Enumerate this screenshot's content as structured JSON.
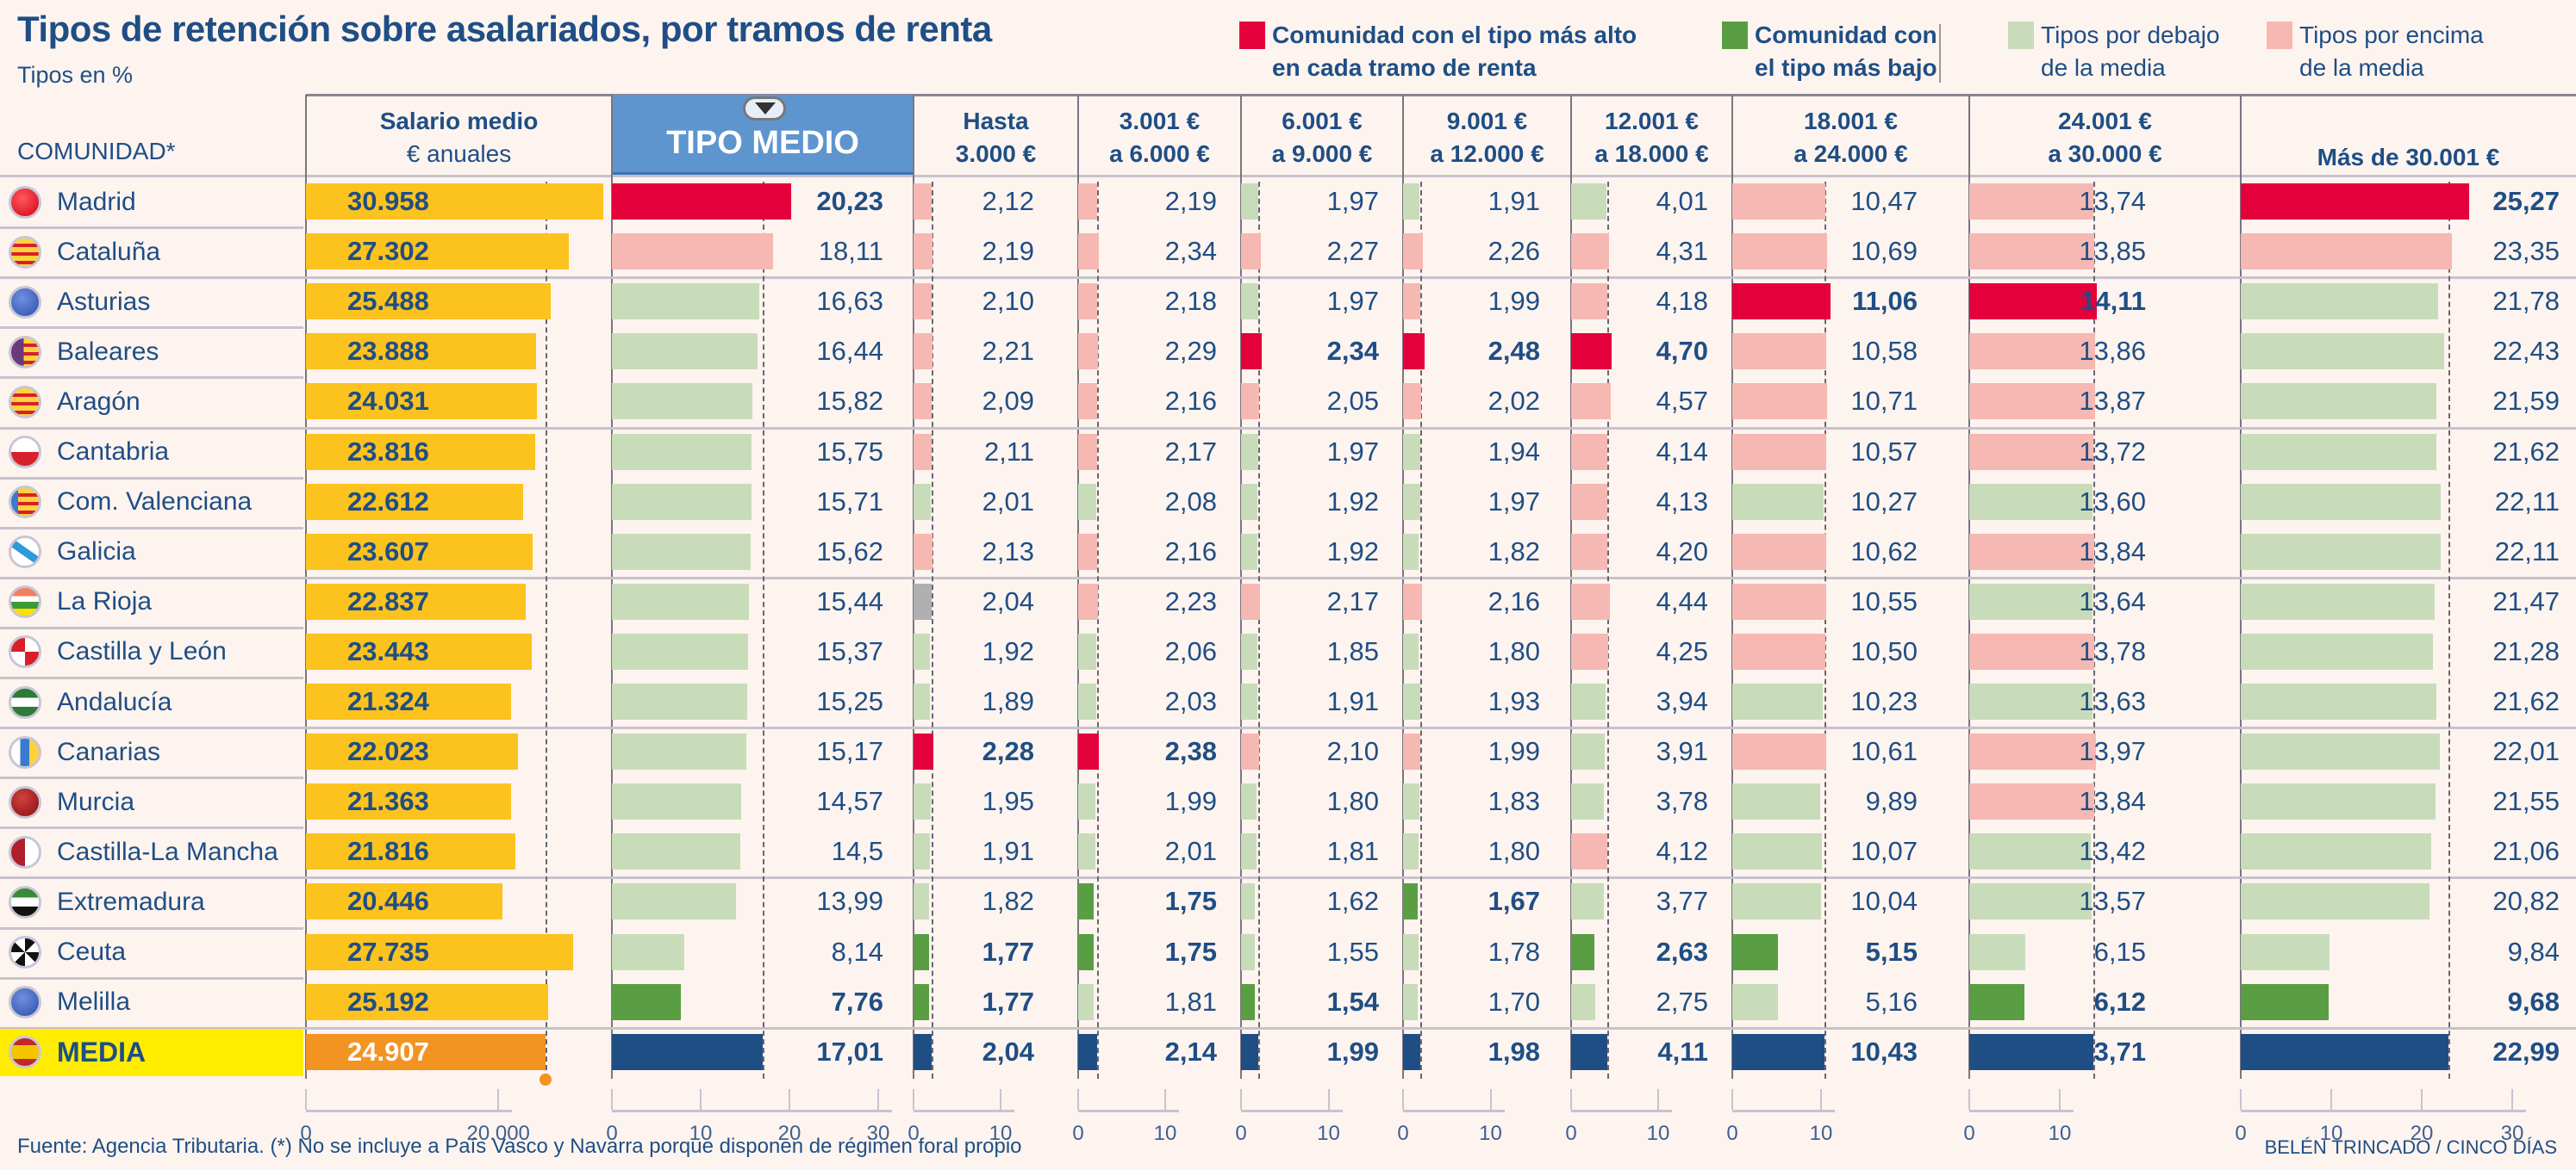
{
  "title": "Tipos de retención sobre asalariados, por tramos de renta",
  "subtitle": "Tipos en %",
  "legend": [
    {
      "key": "highest",
      "label": "Comunidad con el tipo más alto\nen cada tramo de renta",
      "color": "#e4003b",
      "bold": true
    },
    {
      "key": "lowest",
      "label": "Comunidad con\nel tipo más bajo",
      "color": "#5a9e44",
      "bold": true
    },
    {
      "key": "below",
      "label": "Tipos por debajo\nde la media",
      "color": "#c8dcba",
      "bold": false
    },
    {
      "key": "above",
      "label": "Tipos por encima\nde la media",
      "color": "#f6b8b2",
      "bold": false
    }
  ],
  "colors": {
    "highest": "#e4003b",
    "lowest": "#5a9e44",
    "below": "#c8dcba",
    "above": "#f6b8b2",
    "equal": "#b0b0b0",
    "media": "#1f4e85",
    "salary": "#fcc21e",
    "salary_media": "#f39322",
    "media_row_bg": "#ffec00",
    "tipo_header_bg": "#5e95cf"
  },
  "header": {
    "comunidad": "COMUNIDAD*",
    "salario_line1": "Salario medio",
    "salario_line2": "€ anuales",
    "tipo_medio": "TIPO MEDIO"
  },
  "footer": {
    "source": "Fuente: Agencia Tributaria. (*) No se incluye a País Vasco y Navarra porque disponen de régimen foral propio",
    "credit": "BELÉN TRINCADO / CINCO DÍAS"
  },
  "chart_data": {
    "type": "table",
    "title": "Tipos de retención sobre asalariados, por tramos de renta",
    "subtitle": "Tipos en %",
    "columns": [
      {
        "key": "salario",
        "label": "Salario medio\n€ anuales",
        "ticks": [
          0,
          20000
        ],
        "tick_labels": [
          "0",
          "20.000"
        ],
        "xlim": [
          0,
          32000
        ]
      },
      {
        "key": "tipo_medio",
        "label": "TIPO MEDIO",
        "ticks": [
          0,
          10,
          20,
          30
        ],
        "tick_labels": [
          "0",
          "10",
          "20",
          "30"
        ],
        "xlim": [
          0,
          35
        ]
      },
      {
        "key": "t1",
        "label": "Hasta\n3.000 €",
        "ticks": [
          0,
          10
        ],
        "tick_labels": [
          "0",
          "10"
        ],
        "xlim": [
          0,
          19
        ]
      },
      {
        "key": "t2",
        "label": "3.001 €\na 6.000 €",
        "ticks": [
          0,
          10
        ],
        "tick_labels": [
          "0",
          "10"
        ],
        "xlim": [
          0,
          19
        ]
      },
      {
        "key": "t3",
        "label": "6.001 €\na 9.000 €",
        "ticks": [
          0,
          10
        ],
        "tick_labels": [
          "0",
          "10"
        ],
        "xlim": [
          0,
          19
        ]
      },
      {
        "key": "t4",
        "label": "9.001 €\na 12.000 €",
        "ticks": [
          0,
          10
        ],
        "tick_labels": [
          "0",
          "10"
        ],
        "xlim": [
          0,
          19
        ]
      },
      {
        "key": "t5",
        "label": "12.001 €\na 18.000 €",
        "ticks": [
          0,
          10
        ],
        "tick_labels": [
          "0",
          "10"
        ],
        "xlim": [
          0,
          19
        ]
      },
      {
        "key": "t6",
        "label": "18.001 €\na 24.000 €",
        "ticks": [
          0,
          10
        ],
        "tick_labels": [
          "0",
          "10"
        ],
        "xlim": [
          0,
          27
        ]
      },
      {
        "key": "t7",
        "label": "24.001 €\na 30.000 €",
        "ticks": [
          0,
          10
        ],
        "tick_labels": [
          "0",
          "10"
        ],
        "xlim": [
          0,
          30
        ]
      },
      {
        "key": "t8",
        "label": "Más de 30.001 €",
        "ticks": [
          0,
          10,
          20,
          30
        ],
        "tick_labels": [
          "0",
          "10",
          "20",
          "30"
        ],
        "xlim": [
          0,
          35
        ]
      }
    ],
    "rows": [
      {
        "name": "Madrid",
        "flag": "madrid-flag-icon",
        "salario": 30958,
        "salario_label": "30.958",
        "values": [
          20.23,
          2.12,
          2.19,
          1.97,
          1.91,
          4.01,
          10.47,
          13.74,
          25.27
        ],
        "labels": [
          "20,23",
          "2,12",
          "2,19",
          "1,97",
          "1,91",
          "4,01",
          "10,47",
          "13,74",
          "25,27"
        ],
        "status": [
          "highest",
          "above",
          "above",
          "below",
          "below",
          "below",
          "above",
          "above",
          "highest"
        ]
      },
      {
        "name": "Cataluña",
        "flag": "cataluna-flag-icon",
        "salario": 27302,
        "salario_label": "27.302",
        "values": [
          18.11,
          2.19,
          2.34,
          2.27,
          2.26,
          4.31,
          10.69,
          13.85,
          23.35
        ],
        "labels": [
          "18,11",
          "2,19",
          "2,34",
          "2,27",
          "2,26",
          "4,31",
          "10,69",
          "13,85",
          "23,35"
        ],
        "status": [
          "above",
          "above",
          "above",
          "above",
          "above",
          "above",
          "above",
          "above",
          "above"
        ]
      },
      {
        "name": "Asturias",
        "flag": "asturias-flag-icon",
        "salario": 25488,
        "salario_label": "25.488",
        "values": [
          16.63,
          2.1,
          2.18,
          1.97,
          1.99,
          4.18,
          11.06,
          14.11,
          21.78
        ],
        "labels": [
          "16,63",
          "2,10",
          "2,18",
          "1,97",
          "1,99",
          "4,18",
          "11,06",
          "14,11",
          "21,78"
        ],
        "status": [
          "below",
          "above",
          "above",
          "below",
          "above",
          "above",
          "highest",
          "highest",
          "below"
        ]
      },
      {
        "name": "Baleares",
        "flag": "baleares-flag-icon",
        "salario": 23888,
        "salario_label": "23.888",
        "values": [
          16.44,
          2.21,
          2.29,
          2.34,
          2.48,
          4.7,
          10.58,
          13.86,
          22.43
        ],
        "labels": [
          "16,44",
          "2,21",
          "2,29",
          "2,34",
          "2,48",
          "4,70",
          "10,58",
          "13,86",
          "22,43"
        ],
        "status": [
          "below",
          "above",
          "above",
          "highest",
          "highest",
          "highest",
          "above",
          "above",
          "below"
        ]
      },
      {
        "name": "Aragón",
        "flag": "aragon-flag-icon",
        "salario": 24031,
        "salario_label": "24.031",
        "values": [
          15.82,
          2.09,
          2.16,
          2.05,
          2.02,
          4.57,
          10.71,
          13.87,
          21.59
        ],
        "labels": [
          "15,82",
          "2,09",
          "2,16",
          "2,05",
          "2,02",
          "4,57",
          "10,71",
          "13,87",
          "21,59"
        ],
        "status": [
          "below",
          "above",
          "above",
          "above",
          "above",
          "above",
          "above",
          "above",
          "below"
        ]
      },
      {
        "name": "Cantabria",
        "flag": "cantabria-flag-icon",
        "salario": 23816,
        "salario_label": "23.816",
        "values": [
          15.75,
          2.11,
          2.17,
          1.97,
          1.94,
          4.14,
          10.57,
          13.72,
          21.62
        ],
        "labels": [
          "15,75",
          "2,11",
          "2,17",
          "1,97",
          "1,94",
          "4,14",
          "10,57",
          "13,72",
          "21,62"
        ],
        "status": [
          "below",
          "above",
          "above",
          "below",
          "below",
          "above",
          "above",
          "above",
          "below"
        ]
      },
      {
        "name": "Com. Valenciana",
        "flag": "valenciana-flag-icon",
        "salario": 22612,
        "salario_label": "22.612",
        "values": [
          15.71,
          2.01,
          2.08,
          1.92,
          1.97,
          4.13,
          10.27,
          13.6,
          22.11
        ],
        "labels": [
          "15,71",
          "2,01",
          "2,08",
          "1,92",
          "1,97",
          "4,13",
          "10,27",
          "13,60",
          "22,11"
        ],
        "status": [
          "below",
          "below",
          "below",
          "below",
          "below",
          "above",
          "below",
          "below",
          "below"
        ]
      },
      {
        "name": "Galicia",
        "flag": "galicia-flag-icon",
        "salario": 23607,
        "salario_label": "23.607",
        "values": [
          15.62,
          2.13,
          2.16,
          1.92,
          1.82,
          4.2,
          10.62,
          13.84,
          22.11
        ],
        "labels": [
          "15,62",
          "2,13",
          "2,16",
          "1,92",
          "1,82",
          "4,20",
          "10,62",
          "13,84",
          "22,11"
        ],
        "status": [
          "below",
          "above",
          "above",
          "below",
          "below",
          "above",
          "above",
          "above",
          "below"
        ]
      },
      {
        "name": "La Rioja",
        "flag": "rioja-flag-icon",
        "salario": 22837,
        "salario_label": "22.837",
        "values": [
          15.44,
          2.04,
          2.23,
          2.17,
          2.16,
          4.44,
          10.55,
          13.64,
          21.47
        ],
        "labels": [
          "15,44",
          "2,04",
          "2,23",
          "2,17",
          "2,16",
          "4,44",
          "10,55",
          "13,64",
          "21,47"
        ],
        "status": [
          "below",
          "equal",
          "above",
          "above",
          "above",
          "above",
          "above",
          "below",
          "below"
        ]
      },
      {
        "name": "Castilla y León",
        "flag": "castilla-leon-flag-icon",
        "salario": 23443,
        "salario_label": "23.443",
        "values": [
          15.37,
          1.92,
          2.06,
          1.85,
          1.8,
          4.25,
          10.5,
          13.78,
          21.28
        ],
        "labels": [
          "15,37",
          "1,92",
          "2,06",
          "1,85",
          "1,80",
          "4,25",
          "10,50",
          "13,78",
          "21,28"
        ],
        "status": [
          "below",
          "below",
          "below",
          "below",
          "below",
          "above",
          "above",
          "above",
          "below"
        ]
      },
      {
        "name": "Andalucía",
        "flag": "andalucia-flag-icon",
        "salario": 21324,
        "salario_label": "21.324",
        "values": [
          15.25,
          1.89,
          2.03,
          1.91,
          1.93,
          3.94,
          10.23,
          13.63,
          21.62
        ],
        "labels": [
          "15,25",
          "1,89",
          "2,03",
          "1,91",
          "1,93",
          "3,94",
          "10,23",
          "13,63",
          "21,62"
        ],
        "status": [
          "below",
          "below",
          "below",
          "below",
          "below",
          "below",
          "below",
          "below",
          "below"
        ]
      },
      {
        "name": "Canarias",
        "flag": "canarias-flag-icon",
        "salario": 22023,
        "salario_label": "22.023",
        "values": [
          15.17,
          2.28,
          2.38,
          2.1,
          1.99,
          3.91,
          10.61,
          13.97,
          22.01
        ],
        "labels": [
          "15,17",
          "2,28",
          "2,38",
          "2,10",
          "1,99",
          "3,91",
          "10,61",
          "13,97",
          "22,01"
        ],
        "status": [
          "below",
          "highest",
          "highest",
          "above",
          "above",
          "below",
          "above",
          "above",
          "below"
        ]
      },
      {
        "name": "Murcia",
        "flag": "murcia-flag-icon",
        "salario": 21363,
        "salario_label": "21.363",
        "values": [
          14.57,
          1.95,
          1.99,
          1.8,
          1.83,
          3.78,
          9.89,
          13.84,
          21.55
        ],
        "labels": [
          "14,57",
          "1,95",
          "1,99",
          "1,80",
          "1,83",
          "3,78",
          "9,89",
          "13,84",
          "21,55"
        ],
        "status": [
          "below",
          "below",
          "below",
          "below",
          "below",
          "below",
          "below",
          "above",
          "below"
        ]
      },
      {
        "name": "Castilla-La Mancha",
        "flag": "castilla-mancha-flag-icon",
        "salario": 21816,
        "salario_label": "21.816",
        "values": [
          14.5,
          1.91,
          2.01,
          1.81,
          1.8,
          4.12,
          10.07,
          13.42,
          21.06
        ],
        "labels": [
          "14,5",
          "1,91",
          "2,01",
          "1,81",
          "1,80",
          "4,12",
          "10,07",
          "13,42",
          "21,06"
        ],
        "status": [
          "below",
          "below",
          "below",
          "below",
          "below",
          "above",
          "below",
          "below",
          "below"
        ]
      },
      {
        "name": "Extremadura",
        "flag": "extremadura-flag-icon",
        "salario": 20446,
        "salario_label": "20.446",
        "values": [
          13.99,
          1.82,
          1.75,
          1.62,
          1.67,
          3.77,
          10.04,
          13.57,
          20.82
        ],
        "labels": [
          "13,99",
          "1,82",
          "1,75",
          "1,62",
          "1,67",
          "3,77",
          "10,04",
          "13,57",
          "20,82"
        ],
        "status": [
          "below",
          "below",
          "lowest",
          "below",
          "lowest",
          "below",
          "below",
          "below",
          "below"
        ]
      },
      {
        "name": "Ceuta",
        "flag": "ceuta-flag-icon",
        "salario": 27735,
        "salario_label": "27.735",
        "values": [
          8.14,
          1.77,
          1.75,
          1.55,
          1.78,
          2.63,
          5.15,
          6.15,
          9.84
        ],
        "labels": [
          "8,14",
          "1,77",
          "1,75",
          "1,55",
          "1,78",
          "2,63",
          "5,15",
          "6,15",
          "9,84"
        ],
        "status": [
          "below",
          "lowest",
          "lowest",
          "below",
          "below",
          "lowest",
          "lowest",
          "below",
          "below"
        ]
      },
      {
        "name": "Melilla",
        "flag": "melilla-flag-icon",
        "salario": 25192,
        "salario_label": "25.192",
        "values": [
          7.76,
          1.77,
          1.81,
          1.54,
          1.7,
          2.75,
          5.16,
          6.12,
          9.68
        ],
        "labels": [
          "7,76",
          "1,77",
          "1,81",
          "1,54",
          "1,70",
          "2,75",
          "5,16",
          "6,12",
          "9,68"
        ],
        "status": [
          "lowest",
          "lowest",
          "below",
          "lowest",
          "below",
          "below",
          "below",
          "lowest",
          "lowest"
        ]
      },
      {
        "name": "MEDIA",
        "flag": "espana-flag-icon",
        "salario": 24907,
        "salario_label": "24.907",
        "is_media": true,
        "values": [
          17.01,
          2.04,
          2.14,
          1.99,
          1.98,
          4.11,
          10.43,
          13.71,
          22.99
        ],
        "labels": [
          "17,01",
          "2,04",
          "2,14",
          "1,99",
          "1,98",
          "4,11",
          "10,43",
          "13,71",
          "22,99"
        ],
        "status": [
          "media",
          "media",
          "media",
          "media",
          "media",
          "media",
          "media",
          "media",
          "media"
        ]
      }
    ],
    "bold_rule": "Values for the highest and lowest community in each column and the MEDIA row are shown in bold",
    "reference_line": "Dashed vertical line marks the national average (MEDIA) in each column"
  }
}
